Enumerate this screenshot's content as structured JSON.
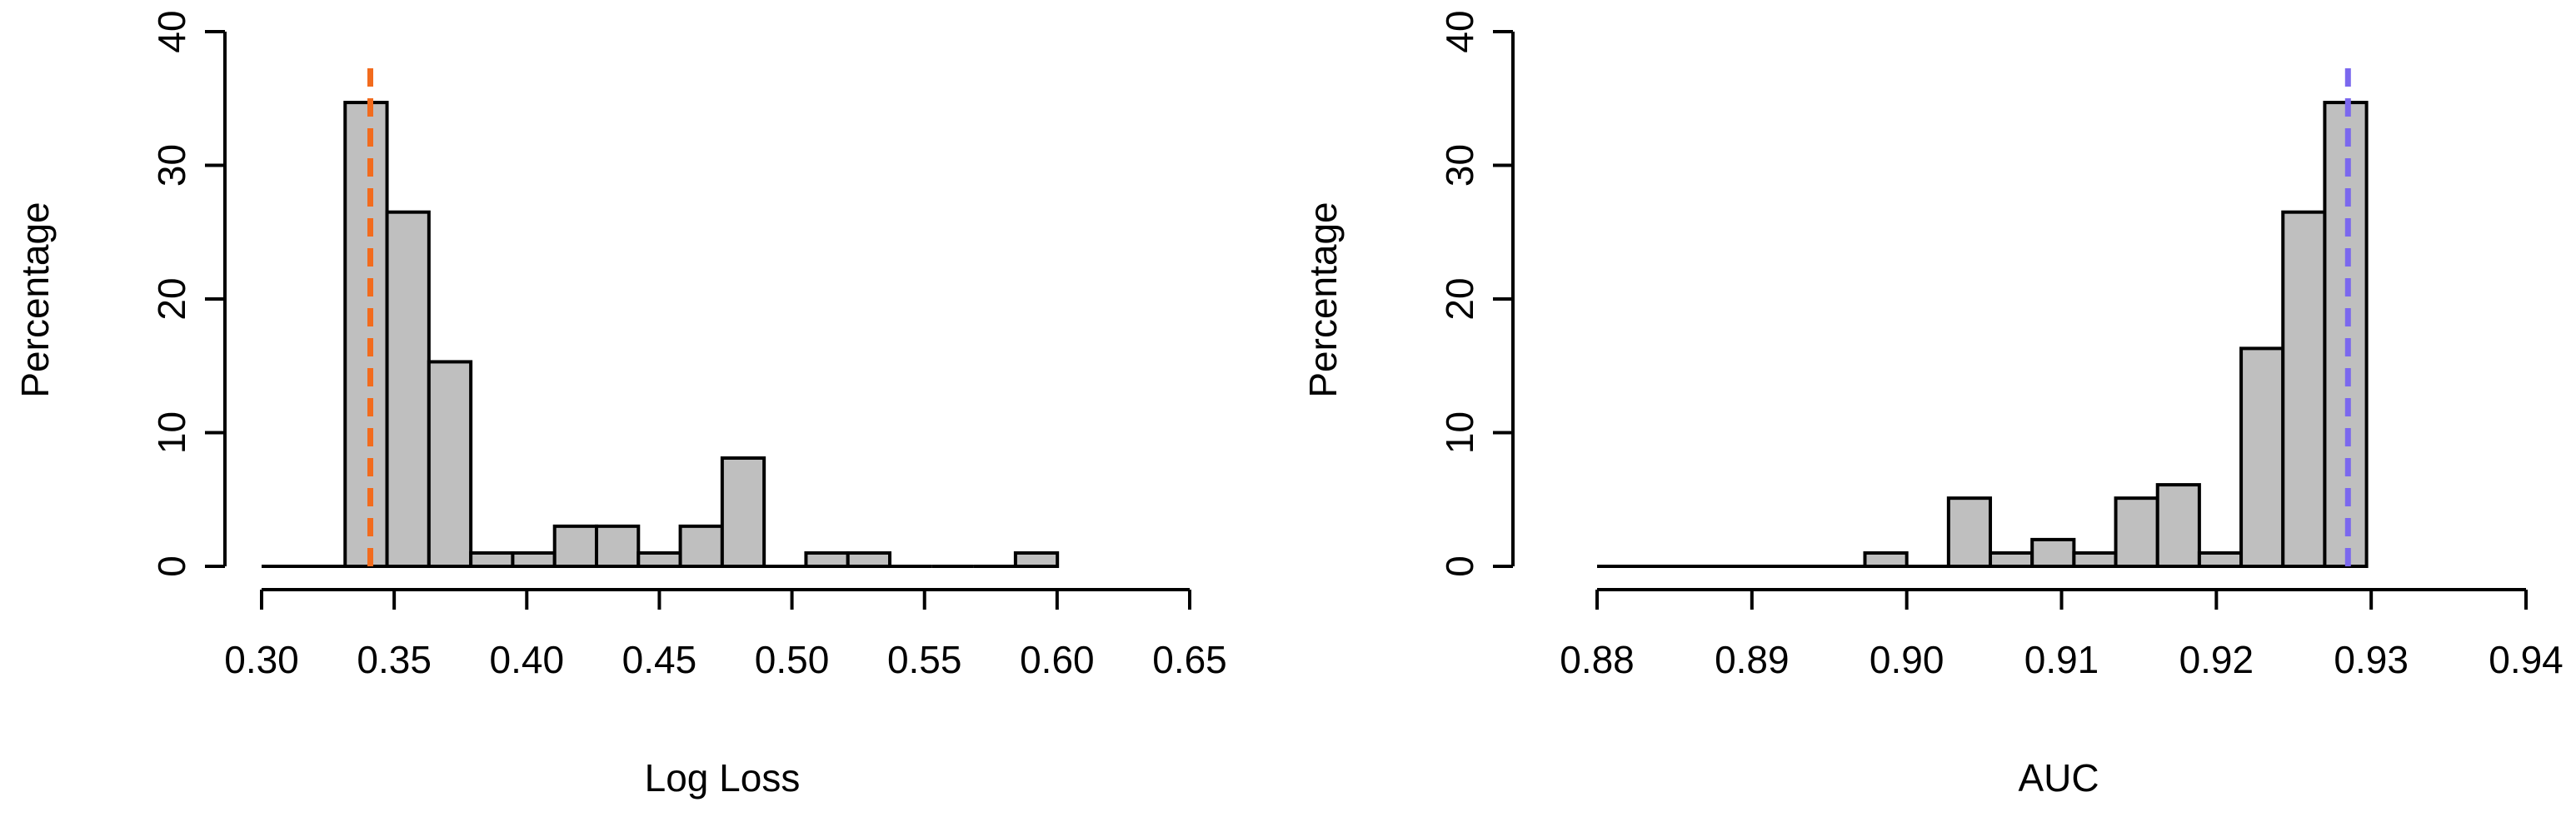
{
  "chart_data": [
    {
      "type": "bar",
      "subtype": "histogram",
      "title": "",
      "xlabel": "Log Loss",
      "ylabel": "Percentage",
      "xlim": [
        0.3,
        0.65
      ],
      "ylim": [
        0,
        40
      ],
      "x_ticks": [
        "0.30",
        "0.35",
        "0.40",
        "0.45",
        "0.50",
        "0.55",
        "0.60",
        "0.65"
      ],
      "x_tick_values": [
        0.3,
        0.35,
        0.4,
        0.45,
        0.5,
        0.55,
        0.6,
        0.65
      ],
      "y_ticks": [
        "0",
        "10",
        "20",
        "30",
        "40"
      ],
      "y_tick_values": [
        0,
        10,
        20,
        30,
        40
      ],
      "bin_width": 0.0158,
      "bin_start": [
        0.3315,
        0.3473,
        0.3631,
        0.3789,
        0.3947,
        0.4105,
        0.4263,
        0.4421,
        0.4579,
        0.4737,
        0.4895,
        0.5053,
        0.5211,
        0.5369,
        0.5527,
        0.5685,
        0.5843
      ],
      "values": [
        34.7,
        26.5,
        15.3,
        1.0,
        1.0,
        3.0,
        3.0,
        1.0,
        3.0,
        8.1,
        0.0,
        1.0,
        1.0,
        0.0,
        0.0,
        0.0,
        1.0
      ],
      "reference_line": {
        "x": 0.341,
        "color": "#f26b1d"
      },
      "baseline_segment": [
        0.3,
        0.3315
      ]
    },
    {
      "type": "bar",
      "subtype": "histogram",
      "title": "",
      "xlabel": "AUC",
      "ylabel": "Percentage",
      "xlim": [
        0.88,
        0.94
      ],
      "ylim": [
        0,
        40
      ],
      "x_ticks": [
        "0.88",
        "0.89",
        "0.90",
        "0.91",
        "0.92",
        "0.93",
        "0.94"
      ],
      "x_tick_values": [
        0.88,
        0.89,
        0.9,
        0.91,
        0.92,
        0.93,
        0.94
      ],
      "y_ticks": [
        "0",
        "10",
        "20",
        "30",
        "40"
      ],
      "y_tick_values": [
        0,
        10,
        20,
        30,
        40
      ],
      "bin_width": 0.0027,
      "bin_start": [
        0.8973,
        0.9,
        0.9027,
        0.9054,
        0.9081,
        0.9108,
        0.9135,
        0.9162,
        0.9189,
        0.9216,
        0.9243,
        0.927
      ],
      "values": [
        1.0,
        0.0,
        5.1,
        1.0,
        2.0,
        1.0,
        5.1,
        6.1,
        1.0,
        16.3,
        26.5,
        34.7
      ],
      "reference_line": {
        "x": 0.9285,
        "color": "#7b68ee"
      },
      "baseline_segment": [
        0.88,
        0.8973
      ]
    }
  ]
}
